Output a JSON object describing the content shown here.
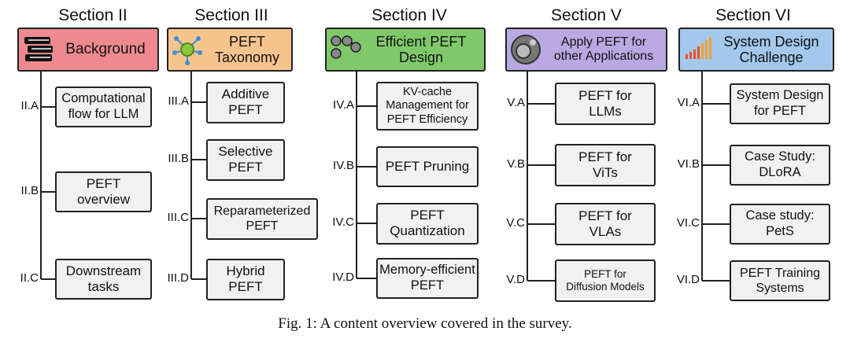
{
  "sections": [
    {
      "title": "Section II",
      "header": "Background",
      "items": [
        {
          "id": "II.A",
          "label": "Computational\nflow for LLM"
        },
        {
          "id": "II.B",
          "label": "PEFT\noverview"
        },
        {
          "id": "II.C",
          "label": "Downstream\ntasks"
        }
      ]
    },
    {
      "title": "Section III",
      "header": "PEFT\nTaxonomy",
      "items": [
        {
          "id": "III.A",
          "label": "Additive\nPEFT"
        },
        {
          "id": "III.B",
          "label": "Selective\nPEFT"
        },
        {
          "id": "III.C",
          "label": "Reparameterized\nPEFT"
        },
        {
          "id": "III.D",
          "label": "Hybrid\nPEFT"
        }
      ]
    },
    {
      "title": "Section IV",
      "header": "Efficient PEFT\nDesign",
      "items": [
        {
          "id": "IV.A",
          "label": "KV-cache\nManagement for\nPEFT Efficiency"
        },
        {
          "id": "IV.B",
          "label": "PEFT Pruning"
        },
        {
          "id": "IV.C",
          "label": "PEFT\nQuantization"
        },
        {
          "id": "IV.D",
          "label": "Memory-efficient\nPEFT"
        }
      ]
    },
    {
      "title": "Section V",
      "header": "Apply PEFT for\nother Applications",
      "items": [
        {
          "id": "V.A",
          "label": "PEFT for\nLLMs"
        },
        {
          "id": "V.B",
          "label": "PEFT for\nViTs"
        },
        {
          "id": "V.C",
          "label": "PEFT for\nVLAs"
        },
        {
          "id": "V.D",
          "label": "PEFT for\nDiffusion Models"
        }
      ]
    },
    {
      "title": "Section VI",
      "header": "System Design\nChallenge",
      "items": [
        {
          "id": "VI.A",
          "label": "System Design\nfor PEFT"
        },
        {
          "id": "VI.B",
          "label": "Case Study:\nDLoRA"
        },
        {
          "id": "VI.C",
          "label": "Case study:\nPetS"
        },
        {
          "id": "VI.D",
          "label": "PEFT Training\nSystems"
        }
      ]
    }
  ],
  "caption": "Fig. 1: A content overview covered in the survey."
}
